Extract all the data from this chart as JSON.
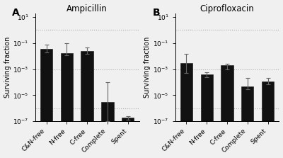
{
  "panel_A": {
    "title": "Ampicillin",
    "label": "A",
    "categories": [
      "C&N-free",
      "N-free",
      "C-free",
      "Complete",
      "Spent"
    ],
    "values": [
      0.035,
      0.017,
      0.025,
      3e-06,
      2e-07
    ],
    "err_low": [
      0.015,
      0.006,
      0.01,
      2.9e-06,
      7e-08
    ],
    "err_high": [
      0.04,
      0.08,
      0.02,
      0.0001,
      5e-08
    ],
    "ylabel": "Surviving fraction"
  },
  "panel_B": {
    "title": "Ciprofloxacin",
    "label": "B",
    "categories": [
      "C&N-free",
      "N-free",
      "C-free",
      "Complete",
      "Spent"
    ],
    "values": [
      0.003,
      0.0004,
      0.002,
      5e-05,
      0.00012
    ],
    "err_low": [
      0.0025,
      0.00015,
      0.001,
      2e-05,
      5e-05
    ],
    "err_high": [
      0.012,
      0.0002,
      0.0006,
      0.00015,
      0.0001
    ],
    "ylabel": "Surviving fraction"
  },
  "bar_color": "#111111",
  "background_color": "#f0f0f0",
  "plot_bg_color": "#f0f0f0",
  "ylim_low": 1e-07,
  "ylim_high": 20.0,
  "yticks": [
    1e-07,
    1e-05,
    0.001,
    0.1,
    10.0
  ],
  "ytick_labels": [
    "10⁻⁷",
    "10⁻⁵",
    "10⁻³",
    "10⁻¹",
    "10¹"
  ],
  "grid_lines": [
    1.0,
    0.001,
    1e-06
  ],
  "title_fontsize": 8.5,
  "label_fontsize": 10,
  "tick_fontsize": 6.5,
  "ylabel_fontsize": 7
}
